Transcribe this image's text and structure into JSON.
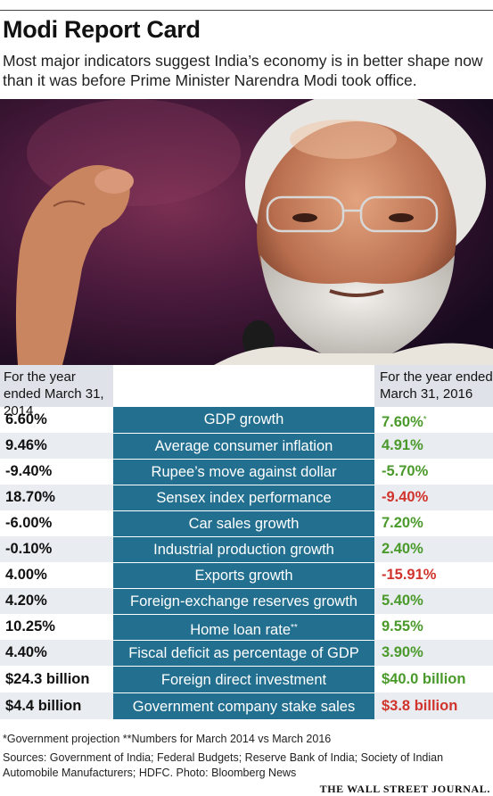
{
  "header": {
    "title": "Modi Report Card",
    "subtitle": "Most major indicators suggest India’s economy is in better shape now than it was before Prime Minister Narendra Modi took office."
  },
  "photo": {
    "icon": "portrait-photo-icon"
  },
  "columns": {
    "left": "For the year ended March 31, 2014",
    "right": "For the year ended March 31, 2016"
  },
  "colors": {
    "band": "#236f8f",
    "positive": "#4a9a2b",
    "negative": "#d1342c",
    "header_bg": "#dfe3e9",
    "row_shade": "#e9ecf0"
  },
  "chart_data": {
    "type": "table",
    "title": "Modi Report Card",
    "columns": [
      "For the year ended March 31, 2014",
      "",
      "For the year ended March 31, 2016"
    ],
    "rows": [
      {
        "label": "GDP growth",
        "label_mark": "",
        "before": "6.60%",
        "after": "7.60%",
        "after_mark": "*",
        "after_color": "positive"
      },
      {
        "label": "Average consumer inflation",
        "label_mark": "",
        "before": "9.46%",
        "after": "4.91%",
        "after_mark": "",
        "after_color": "positive"
      },
      {
        "label": "Rupee’s move against dollar",
        "label_mark": "",
        "before": "-9.40%",
        "after": "-5.70%",
        "after_mark": "",
        "after_color": "positive"
      },
      {
        "label": "Sensex index performance",
        "label_mark": "",
        "before": "18.70%",
        "after": "-9.40%",
        "after_mark": "",
        "after_color": "negative"
      },
      {
        "label": "Car sales growth",
        "label_mark": "",
        "before": "-6.00%",
        "after": "7.20%",
        "after_mark": "",
        "after_color": "positive"
      },
      {
        "label": "Industrial production growth",
        "label_mark": "",
        "before": "-0.10%",
        "after": "2.40%",
        "after_mark": "",
        "after_color": "positive"
      },
      {
        "label": "Exports growth",
        "label_mark": "",
        "before": "4.00%",
        "after": "-15.91%",
        "after_mark": "",
        "after_color": "negative"
      },
      {
        "label": "Foreign-exchange reserves growth",
        "label_mark": "",
        "before": "4.20%",
        "after": "5.40%",
        "after_mark": "",
        "after_color": "positive"
      },
      {
        "label": "Home loan rate",
        "label_mark": "**",
        "before": "10.25%",
        "after": "9.55%",
        "after_mark": "",
        "after_color": "positive"
      },
      {
        "label": "Fiscal deficit as percentage of GDP",
        "label_mark": "",
        "before": "4.40%",
        "after": "3.90%",
        "after_mark": "",
        "after_color": "positive"
      },
      {
        "label": "Foreign direct investment",
        "label_mark": "",
        "before": "$24.3 billion",
        "after": "$40.0 billion",
        "after_mark": "",
        "after_color": "positive"
      },
      {
        "label": "Government company stake sales",
        "label_mark": "",
        "before": "$4.4 billion",
        "after": "$3.8 billion",
        "after_mark": "",
        "after_color": "negative"
      }
    ]
  },
  "footer": {
    "notes": "*Government projection   **Numbers for March 2014 vs March 2016",
    "sources": "Sources: Government of India; Federal Budgets; Reserve Bank of India; Society of Indian Automobile Manufacturers; HDFC.   Photo: Bloomberg News",
    "brand": "THE WALL STREET JOURNAL."
  }
}
